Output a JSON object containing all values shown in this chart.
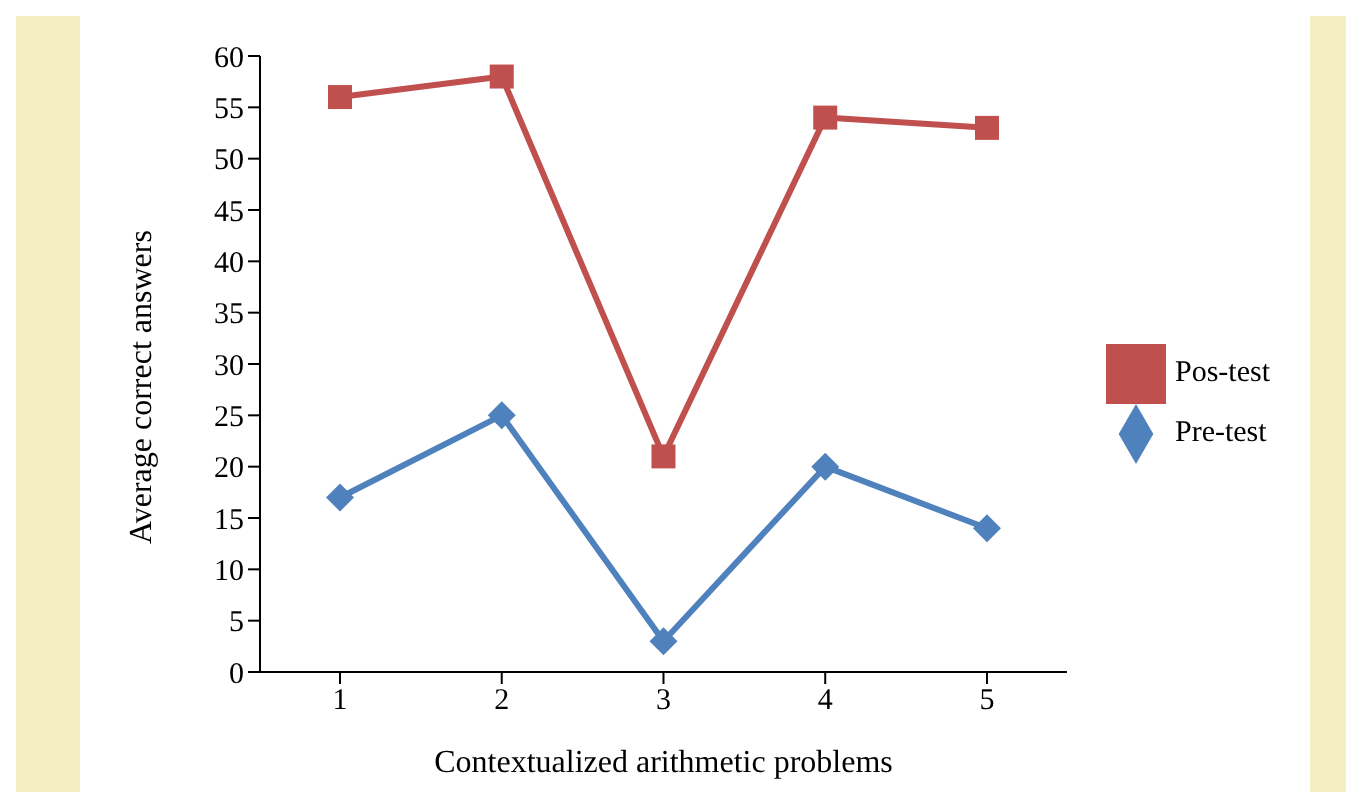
{
  "chart_data": {
    "type": "line",
    "xlabel": "Contextualized arithmetic problems",
    "ylabel": "Average correct answers",
    "categories": [
      "1",
      "2",
      "3",
      "4",
      "5"
    ],
    "series": [
      {
        "name": "Pos-test",
        "color": "#c0504d",
        "marker": "square",
        "values": [
          56,
          58,
          21,
          54,
          53
        ]
      },
      {
        "name": "Pre-test",
        "color": "#4f81bd",
        "marker": "diamond",
        "values": [
          17,
          25,
          3,
          20,
          14
        ]
      }
    ],
    "ylim": [
      0,
      60
    ],
    "yticks": [
      0,
      5,
      10,
      15,
      20,
      25,
      30,
      35,
      40,
      45,
      50,
      55,
      60
    ],
    "grid": false,
    "legend": "right",
    "line_style": "solid"
  }
}
